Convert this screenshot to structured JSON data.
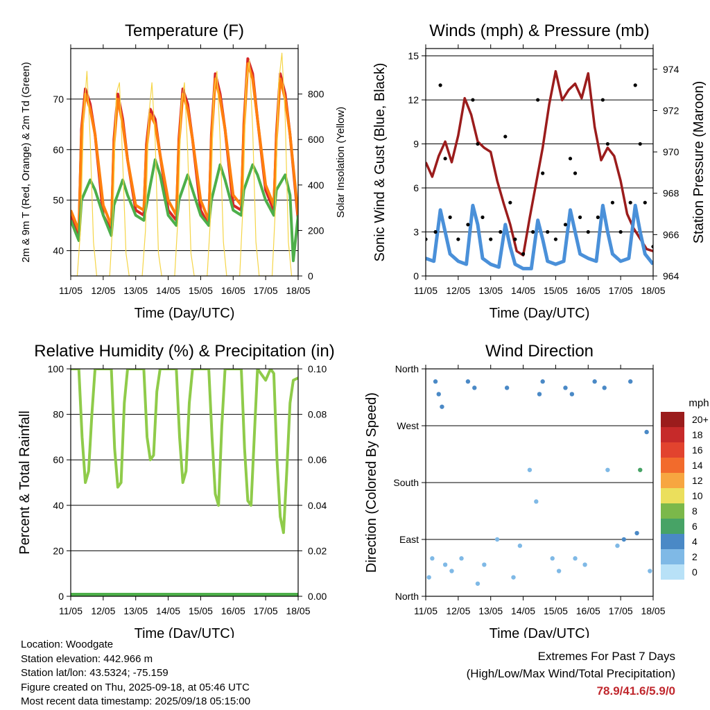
{
  "chart_data": [
    {
      "type": "line",
      "title": "Temperature (F)",
      "xlabel": "Time (Day/UTC)",
      "ylabel": "2m & 9m T (Red, Orange) & 2m Td (Green)",
      "y2label": "Solar Insolation (Yellow)",
      "x_ticks": [
        "11/05",
        "12/05",
        "13/05",
        "14/05",
        "15/05",
        "16/05",
        "17/05",
        "18/05"
      ],
      "y_ticks": [
        "40",
        "50",
        "60",
        "70"
      ],
      "y2_ticks": [
        "0",
        "200",
        "400",
        "600",
        "800"
      ],
      "ylim": [
        35,
        80
      ],
      "y2lim": [
        0,
        1000
      ],
      "grid": "horizontal",
      "series": [
        {
          "name": "2m T",
          "color": "#d62728",
          "x": [
            0,
            0.25,
            0.33,
            0.45,
            0.6,
            0.75,
            1.0,
            1.25,
            1.33,
            1.45,
            1.6,
            1.75,
            2.0,
            2.25,
            2.33,
            2.45,
            2.6,
            2.75,
            3.0,
            3.25,
            3.33,
            3.45,
            3.6,
            3.75,
            4.0,
            4.25,
            4.33,
            4.45,
            4.6,
            4.75,
            5.0,
            5.25,
            5.33,
            5.45,
            5.6,
            5.75,
            6.0,
            6.25,
            6.33,
            6.45,
            6.6,
            6.75,
            7.0
          ],
          "y": [
            47,
            43,
            64,
            72,
            69,
            63,
            47,
            44,
            62,
            71,
            66,
            58,
            48,
            47,
            61,
            68,
            66,
            59,
            48,
            46,
            62,
            72,
            69,
            62,
            48,
            45,
            63,
            75,
            71,
            64,
            49,
            48,
            65,
            78,
            75,
            66,
            52,
            48,
            63,
            75,
            71,
            63,
            46
          ]
        },
        {
          "name": "9m T",
          "color": "#ff7f0e",
          "x": [
            0,
            0.25,
            0.33,
            0.45,
            0.6,
            0.75,
            1.0,
            1.25,
            1.33,
            1.45,
            1.6,
            1.75,
            2.0,
            2.25,
            2.33,
            2.45,
            2.6,
            2.75,
            3.0,
            3.25,
            3.33,
            3.45,
            3.6,
            3.75,
            4.0,
            4.25,
            4.33,
            4.45,
            4.6,
            4.75,
            5.0,
            5.25,
            5.33,
            5.45,
            5.6,
            5.75,
            6.0,
            6.25,
            6.33,
            6.45,
            6.6,
            6.75,
            7.0
          ],
          "y": [
            48,
            44,
            63,
            71,
            68,
            63,
            49,
            45,
            61,
            70,
            65,
            58,
            49,
            48,
            60,
            67,
            65,
            59,
            50,
            47,
            61,
            71,
            68,
            62,
            50,
            46,
            62,
            74,
            70,
            64,
            51,
            49,
            64,
            77,
            74,
            66,
            53,
            49,
            62,
            74,
            70,
            63,
            47
          ]
        },
        {
          "name": "2m Td",
          "color": "#4daf4a",
          "x": [
            0,
            0.25,
            0.33,
            0.6,
            0.75,
            1.0,
            1.25,
            1.33,
            1.6,
            1.75,
            2.0,
            2.25,
            2.33,
            2.6,
            2.75,
            3.0,
            3.25,
            3.33,
            3.6,
            3.75,
            4.0,
            4.25,
            4.33,
            4.6,
            4.75,
            5.0,
            5.25,
            5.33,
            5.6,
            5.75,
            6.0,
            6.25,
            6.33,
            6.6,
            6.75,
            6.85,
            7.0
          ],
          "y": [
            46,
            42,
            50,
            54,
            52,
            47,
            43,
            49,
            54,
            51,
            47,
            46,
            49,
            58,
            55,
            47,
            45,
            50,
            55,
            52,
            47,
            45,
            50,
            57,
            54,
            48,
            47,
            52,
            57,
            55,
            50,
            47,
            52,
            55,
            51,
            38,
            47
          ]
        },
        {
          "name": "Solar Insolation",
          "color": "#f5d547",
          "axis": "y2",
          "x": [
            0,
            0.2,
            0.3,
            0.4,
            0.5,
            0.6,
            0.7,
            0.8,
            1.0,
            1.2,
            1.3,
            1.4,
            1.5,
            1.6,
            1.7,
            1.8,
            2.0,
            2.2,
            2.3,
            2.4,
            2.5,
            2.6,
            2.7,
            2.8,
            3.0,
            3.2,
            3.3,
            3.4,
            3.5,
            3.6,
            3.7,
            3.8,
            4.0,
            4.2,
            4.3,
            4.4,
            4.5,
            4.6,
            4.7,
            4.8,
            5.0,
            5.2,
            5.3,
            5.4,
            5.5,
            5.6,
            5.7,
            5.8,
            6.0,
            6.2,
            6.3,
            6.4,
            6.5,
            6.6,
            6.7,
            6.8,
            7.0
          ],
          "y": [
            0,
            0,
            200,
            700,
            900,
            600,
            150,
            0,
            0,
            0,
            250,
            800,
            850,
            500,
            100,
            0,
            0,
            0,
            200,
            700,
            850,
            600,
            100,
            0,
            0,
            0,
            250,
            750,
            850,
            550,
            100,
            0,
            0,
            0,
            250,
            800,
            900,
            600,
            150,
            0,
            0,
            0,
            300,
            850,
            950,
            650,
            150,
            0,
            0,
            0,
            300,
            850,
            980,
            700,
            150,
            0,
            0
          ]
        }
      ]
    },
    {
      "type": "line",
      "title": "Winds (mph) & Pressure (mb)",
      "xlabel": "Time (Day/UTC)",
      "ylabel": "Sonic Wind & Gust (Blue, Black)",
      "y2label": "Station Pressure (Maroon)",
      "x_ticks": [
        "11/05",
        "12/05",
        "13/05",
        "14/05",
        "15/05",
        "16/05",
        "17/05",
        "18/05"
      ],
      "y_ticks": [
        "0",
        "3",
        "6",
        "9",
        "12",
        "15"
      ],
      "y2_ticks": [
        "964",
        "966",
        "968",
        "970",
        "972",
        "974"
      ],
      "ylim": [
        0,
        15.5
      ],
      "y2lim": [
        964,
        975
      ],
      "grid": "horizontal",
      "series": [
        {
          "name": "Station Pressure",
          "color": "#9b1c1c",
          "axis": "y2",
          "x": [
            0,
            0.2,
            0.4,
            0.6,
            0.8,
            1.0,
            1.2,
            1.4,
            1.6,
            1.8,
            2.0,
            2.2,
            2.4,
            2.6,
            2.8,
            3.0,
            3.2,
            3.4,
            3.6,
            3.8,
            4.0,
            4.2,
            4.4,
            4.6,
            4.8,
            5.0,
            5.2,
            5.4,
            5.6,
            5.8,
            6.0,
            6.2,
            6.4,
            6.6,
            6.8,
            7.0
          ],
          "y": [
            969.5,
            968.8,
            969.8,
            970.5,
            969.5,
            970.8,
            972.6,
            971.8,
            970.5,
            970.2,
            970.0,
            968.6,
            967.5,
            966.5,
            965.2,
            965.0,
            966.8,
            968.5,
            970.2,
            972.3,
            973.9,
            972.5,
            973.0,
            973.3,
            972.6,
            973.8,
            971.2,
            969.6,
            970.2,
            969.8,
            968.6,
            967.0,
            966.3,
            965.8,
            965.3,
            965.2
          ]
        },
        {
          "name": "Sonic Wind",
          "color": "#4a90d9",
          "x": [
            0,
            0.25,
            0.45,
            0.6,
            0.75,
            1.0,
            1.25,
            1.45,
            1.6,
            1.75,
            2.0,
            2.25,
            2.45,
            2.6,
            2.75,
            3.0,
            3.25,
            3.45,
            3.6,
            3.75,
            4.0,
            4.25,
            4.45,
            4.6,
            4.75,
            5.0,
            5.25,
            5.45,
            5.6,
            5.75,
            6.0,
            6.25,
            6.45,
            6.6,
            6.75,
            7.0
          ],
          "y": [
            1.2,
            1.0,
            4.5,
            3.0,
            1.5,
            1.0,
            0.8,
            4.8,
            3.5,
            1.2,
            0.8,
            0.6,
            3.5,
            2.0,
            0.8,
            0.5,
            0.5,
            3.8,
            2.5,
            1.0,
            0.8,
            1.0,
            4.5,
            3.0,
            1.5,
            1.2,
            1.0,
            4.8,
            3.0,
            1.5,
            1.0,
            1.2,
            4.8,
            3.0,
            1.5,
            0.8
          ]
        },
        {
          "name": "Gust",
          "color": "#000000",
          "x": [
            0,
            0.3,
            0.45,
            0.6,
            0.75,
            1.0,
            1.3,
            1.45,
            1.6,
            1.75,
            2.0,
            2.3,
            2.45,
            2.6,
            2.75,
            3.0,
            3.3,
            3.45,
            3.6,
            3.75,
            4.0,
            4.3,
            4.45,
            4.6,
            4.75,
            5.0,
            5.3,
            5.45,
            5.6,
            5.75,
            6.0,
            6.3,
            6.45,
            6.6,
            6.75,
            7.0
          ],
          "y": [
            2.5,
            3.0,
            13.0,
            8.0,
            4.0,
            2.5,
            3.5,
            12.0,
            9.0,
            4.0,
            2.5,
            3.0,
            9.5,
            5.0,
            2.5,
            1.5,
            3.0,
            12.0,
            7.0,
            3.0,
            2.5,
            3.5,
            8.0,
            7.0,
            4.0,
            3.0,
            4.0,
            12.0,
            9.0,
            5.0,
            3.0,
            5.0,
            13.0,
            9.0,
            5.0,
            2.0
          ]
        }
      ]
    },
    {
      "type": "line",
      "title": "Relative Humidity (%) & Precipitation (in)",
      "xlabel": "Time (Day/UTC)",
      "ylabel": "Percent & Total Rainfall",
      "x_ticks": [
        "11/05",
        "12/05",
        "13/05",
        "14/05",
        "15/05",
        "16/05",
        "17/05",
        "18/05"
      ],
      "y_ticks": [
        "0",
        "20",
        "40",
        "60",
        "80",
        "100"
      ],
      "y2_ticks": [
        "0.00",
        "0.02",
        "0.04",
        "0.06",
        "0.08",
        "0.10"
      ],
      "ylim": [
        0,
        100
      ],
      "y2lim": [
        0,
        0.1
      ],
      "grid": "horizontal",
      "series": [
        {
          "name": "Relative Humidity",
          "color": "#8fcb4a",
          "x": [
            0,
            0.25,
            0.35,
            0.45,
            0.55,
            0.65,
            0.75,
            1.0,
            1.25,
            1.35,
            1.45,
            1.55,
            1.65,
            1.75,
            2.0,
            2.25,
            2.35,
            2.45,
            2.55,
            2.65,
            2.75,
            3.0,
            3.25,
            3.35,
            3.45,
            3.55,
            3.65,
            3.75,
            4.0,
            4.25,
            4.35,
            4.45,
            4.55,
            4.65,
            4.75,
            5.0,
            5.25,
            5.35,
            5.45,
            5.55,
            5.65,
            5.75,
            6.0,
            6.15,
            6.25,
            6.35,
            6.45,
            6.55,
            6.65,
            6.75,
            6.85,
            7.0
          ],
          "y": [
            100,
            100,
            70,
            50,
            55,
            80,
            100,
            100,
            100,
            65,
            48,
            50,
            85,
            100,
            100,
            100,
            70,
            60,
            62,
            90,
            100,
            100,
            100,
            70,
            50,
            55,
            85,
            100,
            100,
            100,
            70,
            45,
            40,
            75,
            100,
            100,
            100,
            65,
            42,
            40,
            70,
            100,
            95,
            100,
            98,
            60,
            35,
            28,
            55,
            85,
            95,
            96
          ]
        },
        {
          "name": "Total Precipitation",
          "color": "#4daf4a",
          "axis": "y2",
          "x": [
            0,
            7
          ],
          "y": [
            0,
            0
          ]
        }
      ]
    },
    {
      "type": "scatter",
      "title": "Wind Direction",
      "xlabel": "Time (Day/UTC)",
      "ylabel": "Direction (Colored By Speed)",
      "x_ticks": [
        "11/05",
        "12/05",
        "13/05",
        "14/05",
        "15/05",
        "16/05",
        "17/05",
        "18/05"
      ],
      "y_ticks": [
        "North",
        "East",
        "South",
        "West",
        "North"
      ],
      "ylim": [
        0,
        360
      ],
      "grid": "horizontal",
      "colorbar": {
        "title": "mph",
        "labels": [
          "20+",
          "18",
          "16",
          "14",
          "12",
          "10",
          "8",
          "6",
          "4",
          "2",
          "0"
        ],
        "colors": [
          "#9b1c1c",
          "#c62a2a",
          "#e2432e",
          "#f26b2c",
          "#f7a640",
          "#ebdf5c",
          "#7bb84a",
          "#47a366",
          "#4a89c6",
          "#7fb9e6",
          "#b8e1f7"
        ]
      },
      "series": [
        {
          "name": "Wind Direction",
          "color": "#7fb9e6",
          "x": [
            0.1,
            0.2,
            0.3,
            0.4,
            0.5,
            0.6,
            0.8,
            1.1,
            1.3,
            1.5,
            1.6,
            1.8,
            2.2,
            2.5,
            2.7,
            2.9,
            3.2,
            3.4,
            3.5,
            3.6,
            3.9,
            4.1,
            4.3,
            4.5,
            4.6,
            4.9,
            5.2,
            5.5,
            5.6,
            5.9,
            6.1,
            6.3,
            6.5,
            6.6,
            6.8,
            6.9
          ],
          "y": [
            30,
            60,
            340,
            320,
            300,
            50,
            40,
            60,
            340,
            330,
            20,
            50,
            90,
            330,
            30,
            80,
            200,
            150,
            320,
            340,
            60,
            40,
            330,
            320,
            60,
            50,
            340,
            330,
            200,
            80,
            90,
            340,
            100,
            200,
            260,
            40
          ],
          "speed": [
            2,
            1,
            3,
            4,
            3,
            2,
            1,
            2,
            3,
            3,
            1,
            2,
            1,
            3,
            2,
            1,
            1,
            2,
            3,
            4,
            2,
            1,
            3,
            3,
            1,
            2,
            4,
            3,
            2,
            1,
            3,
            3,
            4,
            5,
            3,
            1
          ]
        }
      ]
    }
  ],
  "info": {
    "location": "Location: Woodgate",
    "elevation": "Station elevation: 442.966 m",
    "latlon": "Station lat/lon: 43.5324; -75.159",
    "created": "Figure created on Thu, 2025-09-18, at 05:46 UTC",
    "latest": "Most recent data timestamp: 2025/09/18 05:15:00"
  },
  "extremes": {
    "title": "Extremes For Past 7 Days",
    "subtitle": "(High/Low/Max Wind/Total Precipitation)",
    "values": "78.9/41.6/5.9/0"
  }
}
